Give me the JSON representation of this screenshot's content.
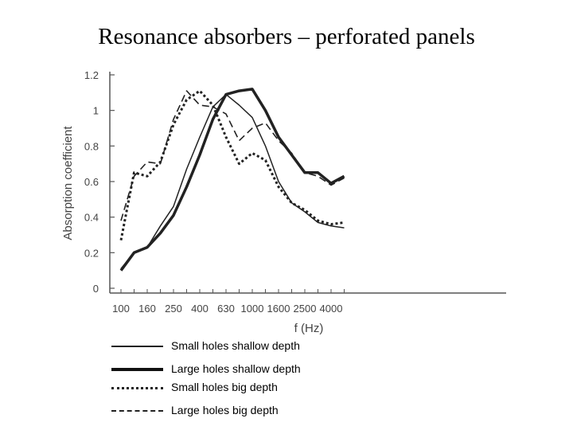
{
  "title": "Resonance absorbers – perforated panels",
  "chart_data": {
    "type": "line",
    "ylabel": "Absorption coefficient",
    "xlabel": "f (Hz)",
    "ylim": [
      0,
      1.2
    ],
    "y_ticks": [
      "0",
      "0.2",
      "0.4",
      "0.6",
      "0.8",
      "1",
      "1.2"
    ],
    "x_ticks": [
      "100",
      "160",
      "250",
      "400",
      "630",
      "1000",
      "1600",
      "2500",
      "4000"
    ],
    "x_points": [
      "100",
      "125",
      "160",
      "200",
      "250",
      "315",
      "400",
      "500",
      "630",
      "800",
      "1000",
      "1250",
      "1600",
      "2000",
      "2500",
      "3150",
      "4000",
      "5000"
    ],
    "grid": false,
    "series": [
      {
        "name": "Small holes shallow depth",
        "style": "solid-thin",
        "color": "#222222",
        "values": [
          0.11,
          0.2,
          0.23,
          0.35,
          0.46,
          0.67,
          0.85,
          1.02,
          1.09,
          1.03,
          0.96,
          0.8,
          0.6,
          0.48,
          0.43,
          0.37,
          0.35,
          0.34
        ]
      },
      {
        "name": "Large holes shallow depth",
        "style": "solid-thick",
        "color": "#222222",
        "values": [
          0.1,
          0.2,
          0.23,
          0.31,
          0.41,
          0.57,
          0.75,
          0.95,
          1.09,
          1.11,
          1.12,
          1.0,
          0.85,
          0.75,
          0.65,
          0.65,
          0.59,
          0.63
        ]
      },
      {
        "name": "Small holes big depth",
        "style": "dotted",
        "color": "#222222",
        "values": [
          0.27,
          0.65,
          0.63,
          0.71,
          0.92,
          1.06,
          1.11,
          1.03,
          0.85,
          0.7,
          0.76,
          0.72,
          0.57,
          0.48,
          0.44,
          0.38,
          0.36,
          0.37
        ]
      },
      {
        "name": "Large holes big depth",
        "style": "dashed",
        "color": "#222222",
        "values": [
          0.38,
          0.63,
          0.71,
          0.7,
          0.95,
          1.11,
          1.03,
          1.02,
          0.98,
          0.83,
          0.9,
          0.93,
          0.83,
          0.76,
          0.65,
          0.63,
          0.58,
          0.62
        ]
      }
    ]
  }
}
